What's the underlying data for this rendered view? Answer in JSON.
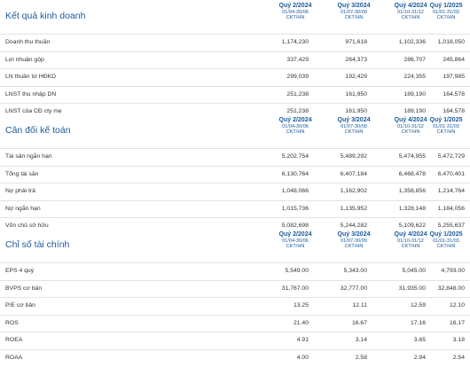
{
  "periods": [
    {
      "quarter": "Quý 2/2024",
      "range": "01/04-30/06",
      "audit": "CKT/HN"
    },
    {
      "quarter": "Quý 3/2024",
      "range": "01/07-30/09",
      "audit": "CKT/HN"
    },
    {
      "quarter": "Quý 4/2024",
      "range": "01/10-31/12",
      "audit": "CKT/HN"
    },
    {
      "quarter": "Quý 1/2025",
      "range": "01/01-31/03",
      "audit": "CKT/HN"
    }
  ],
  "sections": [
    {
      "title": "Kết quả kinh doanh",
      "rows": [
        {
          "label": "Doanh thu thuần",
          "values": [
            "1,174,230",
            "971,618",
            "1,102,336",
            "1,018,050"
          ]
        },
        {
          "label": "Lợi nhuận gộp",
          "values": [
            "337,429",
            "264,373",
            "286,707",
            "245,864"
          ]
        },
        {
          "label": "LN thuần từ HĐKD",
          "values": [
            "299,039",
            "192,429",
            "224,355",
            "197,985"
          ]
        },
        {
          "label": "LNST thu nhập DN",
          "values": [
            "251,238",
            "161,950",
            "189,190",
            "164,578"
          ]
        },
        {
          "label": "LNST của CĐ cty mẹ",
          "values": [
            "251,238",
            "161,950",
            "189,190",
            "164,578"
          ]
        }
      ]
    },
    {
      "title": "Cân đối kế toán",
      "rows": [
        {
          "label": "Tài sản ngắn hạn",
          "values": [
            "5,202,754",
            "5,489,292",
            "5,474,955",
            "5,472,729"
          ]
        },
        {
          "label": "Tổng tài sản",
          "values": [
            "6,130,764",
            "6,407,184",
            "6,468,478",
            "6,470,401"
          ]
        },
        {
          "label": "Nợ phải trả",
          "values": [
            "1,048,066",
            "1,162,902",
            "1,358,856",
            "1,214,764"
          ]
        },
        {
          "label": "Nợ ngắn hạn",
          "values": [
            "1,015,736",
            "1,135,952",
            "1,328,148",
            "1,184,056"
          ]
        },
        {
          "label": "Vốn chủ sở hữu",
          "values": [
            "5,082,698",
            "5,244,282",
            "5,109,622",
            "5,255,637"
          ]
        }
      ]
    },
    {
      "title": "Chỉ số tài chính",
      "rows": [
        {
          "label": "EPS 4 quý",
          "values": [
            "5,549.00",
            "5,343.00",
            "5,045.00",
            "4,793.00"
          ]
        },
        {
          "label": "BVPS cơ bản",
          "values": [
            "31,767.00",
            "32,777.00",
            "31,935.00",
            "32,848.00"
          ]
        },
        {
          "label": "P/E cơ bản",
          "values": [
            "13.25",
            "12.11",
            "12.59",
            "12.10"
          ]
        },
        {
          "label": "ROS",
          "values": [
            "21.40",
            "16.67",
            "17.16",
            "16.17"
          ]
        },
        {
          "label": "ROEA",
          "values": [
            "4.91",
            "3.14",
            "3.65",
            "3.18"
          ]
        },
        {
          "label": "ROAA",
          "values": [
            "4.00",
            "2.58",
            "2.94",
            "2.54"
          ]
        }
      ]
    }
  ]
}
